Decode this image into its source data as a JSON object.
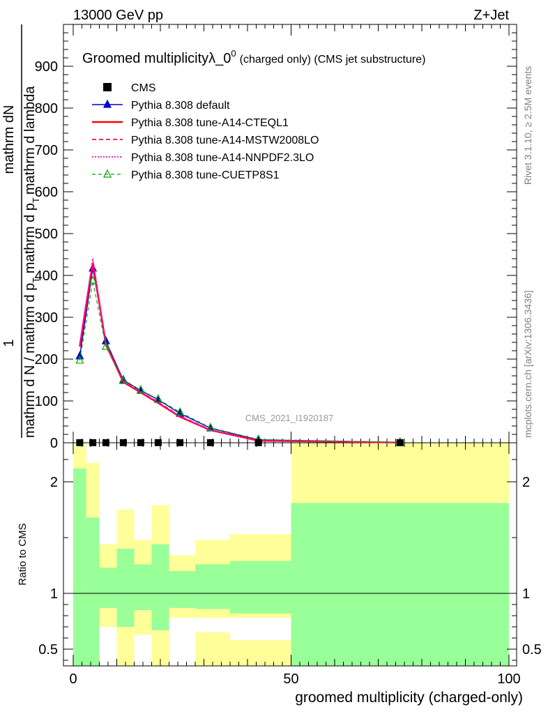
{
  "header": {
    "left": "13000 GeV pp",
    "right": "Z+Jet"
  },
  "plot_title": {
    "main": "Groomed multiplicityλ_0",
    "sup": "0",
    "tail": "(charged only) (CMS jet substructure)"
  },
  "watermark": "CMS_2021_I1920187",
  "side_labels": {
    "rivet": "Rivet 3.1.10, ≥ 2.5M events",
    "mcplots": "mcplots.cern.ch [arXiv:1306.3436]"
  },
  "ylabel_main": {
    "numerator_one": "1",
    "numerator": "mathrm dN",
    "denominator_top": "mathrm d N / mathrm d p",
    "denominator_sub": "T",
    "denominator_tail": " mathrm d p",
    "denominator_sub2": "T",
    "denominator_end": "mathrm d lambda"
  },
  "ylabel_ratio": "Ratio to CMS",
  "xlabel": "groomed multiplicity (charged-only)",
  "colors": {
    "cms": "#000000",
    "default": "#0000cc",
    "cteql1": "#ff0000",
    "mstw": "#ff0066",
    "nnpdf": "#ff00cc",
    "cuetp8s1": "#00aa00",
    "band_green": "#99ff99",
    "band_yellow": "#ffff99"
  },
  "chart_data": {
    "type": "line",
    "xlim": [
      -2,
      100
    ],
    "ylim_main": [
      0,
      1000
    ],
    "ylim_ratio": [
      0.35,
      2.35
    ],
    "x_ticks": [
      0,
      50,
      100
    ],
    "y_ticks_main": [
      0,
      100,
      200,
      300,
      400,
      500,
      600,
      700,
      800,
      900
    ],
    "y_ticks_ratio": [
      0.5,
      1,
      2
    ],
    "x": [
      1.5,
      4.5,
      7.5,
      11.5,
      15.5,
      19.5,
      24.5,
      31.5,
      42.5,
      75
    ],
    "bin_edges": [
      0,
      3,
      6,
      10,
      14,
      18,
      22,
      28,
      36,
      50,
      100
    ],
    "legend": [
      {
        "key": "cms",
        "label": "CMS"
      },
      {
        "key": "default",
        "label": "Pythia 8.308 default"
      },
      {
        "key": "cteql1",
        "label": "Pythia 8.308 tune-A14-CTEQL1"
      },
      {
        "key": "mstw",
        "label": "Pythia 8.308 tune-A14-MSTW2008LO"
      },
      {
        "key": "nnpdf",
        "label": "Pythia 8.308 tune-A14-NNPDF2.3LO"
      },
      {
        "key": "cuetp8s1",
        "label": "Pythia 8.308 tune-CUETP8S1"
      }
    ],
    "cms_values": [
      0.3,
      0.3,
      0.3,
      0.3,
      0.3,
      0.3,
      0.3,
      0.3,
      0.3,
      0.3
    ],
    "series": [
      {
        "key": "default",
        "values": [
          207,
          417,
          243,
          150,
          125,
          103,
          70,
          35,
          7,
          1
        ]
      },
      {
        "key": "cteql1",
        "values": [
          230,
          430,
          235,
          145,
          120,
          95,
          62,
          30,
          5,
          0.5
        ]
      },
      {
        "key": "mstw",
        "values": [
          232,
          425,
          238,
          147,
          122,
          97,
          64,
          31,
          6,
          0.5
        ]
      },
      {
        "key": "nnpdf",
        "values": [
          236,
          440,
          237,
          146,
          121,
          96,
          63,
          30,
          5,
          0.5
        ]
      },
      {
        "key": "cuetp8s1",
        "values": [
          197,
          387,
          230,
          148,
          126,
          104,
          73,
          36,
          8,
          1
        ]
      }
    ],
    "ratio_band_green": [
      [
        0.35,
        2.12
      ],
      [
        0.35,
        1.68
      ],
      [
        0.35,
        1.23
      ],
      [
        0.35,
        1.4
      ],
      [
        0.35,
        1.26
      ],
      [
        0.35,
        1.44
      ],
      [
        0.35,
        1.2
      ],
      [
        0.35,
        1.26
      ],
      [
        0.35,
        1.29
      ],
      [
        0.35,
        1.81
      ]
    ],
    "ratio_band_yellow": [
      [
        0.35,
        2.35
      ],
      [
        0.35,
        2.17
      ],
      [
        0.35,
        1.44
      ],
      [
        0.35,
        1.75
      ],
      [
        0.35,
        1.48
      ],
      [
        0.35,
        1.79
      ],
      [
        0.35,
        1.34
      ],
      [
        0.35,
        1.48
      ],
      [
        0.35,
        1.53
      ],
      [
        0.35,
        2.35
      ]
    ],
    "ratio_white_gaps": [
      [
        0.35,
        0.35
      ],
      [
        0.35,
        0.35
      ],
      [
        0.35,
        0.7
      ],
      [
        0.35,
        0.35
      ],
      [
        0.35,
        0.5
      ],
      [
        0.35,
        0.35
      ],
      [
        0.35,
        0.35
      ],
      [
        0.35,
        0.35
      ],
      [
        0.35,
        0.35
      ],
      [
        0.35,
        0.35
      ]
    ]
  }
}
